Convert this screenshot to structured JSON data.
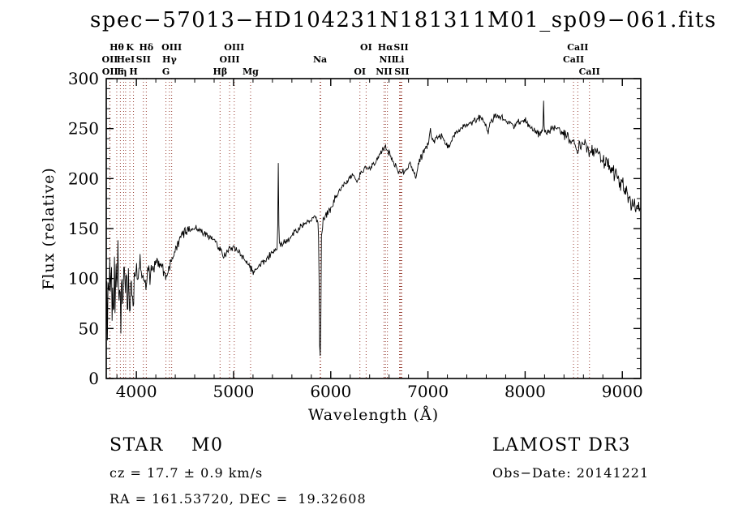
{
  "footer": {
    "classification": "STAR    M0",
    "survey": "LAMOST DR3",
    "cz": "cz = 17.7 ± 0.9 km/s",
    "obs_date": "Obs−Date: 20141221",
    "radec": "RA = 161.53720, DEC =  19.32608"
  },
  "colors": {
    "background": "#ffffff",
    "spectrum_line": "#000000",
    "axis": "#000000",
    "marker_line": "#963a2f",
    "text": "#000000"
  },
  "chart_data": {
    "type": "line",
    "title": "spec−57013−HD104231N181311M01_sp09−061.fits",
    "xlabel": "Wavelength (Å)",
    "ylabel": "Flux (relative)",
    "xlim": [
      3690,
      9190
    ],
    "ylim": [
      0,
      300
    ],
    "xticks": [
      4000,
      5000,
      6000,
      7000,
      8000,
      9000
    ],
    "x_minor_step": 200,
    "yticks": [
      0,
      50,
      100,
      150,
      200,
      250,
      300
    ],
    "y_minor_step": 10,
    "grid": false,
    "legend": "none",
    "series_name": "spectrum",
    "spectral_lines": [
      {
        "label": "Hθ",
        "wavelength": 3798,
        "row": 0
      },
      {
        "label": "K",
        "wavelength": 3933,
        "row": 0
      },
      {
        "label": "Hδ",
        "wavelength": 4102,
        "row": 0
      },
      {
        "label": "OIII",
        "wavelength": 4363,
        "row": 0
      },
      {
        "label": "OIII",
        "wavelength": 5007,
        "row": 0
      },
      {
        "label": "OI",
        "wavelength": 6364,
        "row": 0
      },
      {
        "label": "Hα",
        "wavelength": 6563,
        "row": 0
      },
      {
        "label": "SII",
        "wavelength": 6724,
        "row": 0
      },
      {
        "label": "CaII",
        "wavelength": 8542,
        "row": 0
      },
      {
        "label": "OII",
        "wavelength": 3727,
        "row": 1
      },
      {
        "label": "HeI",
        "wavelength": 3889,
        "row": 1
      },
      {
        "label": "SII",
        "wavelength": 4072,
        "row": 1
      },
      {
        "label": "Hγ",
        "wavelength": 4340,
        "row": 1
      },
      {
        "label": "OIII",
        "wavelength": 4959,
        "row": 1
      },
      {
        "label": "Na",
        "wavelength": 5890,
        "row": 1
      },
      {
        "label": "",
        "wavelength": 5896,
        "row": 1
      },
      {
        "label": "NII",
        "wavelength": 6583,
        "row": 1
      },
      {
        "label": "Li",
        "wavelength": 6707,
        "row": 1
      },
      {
        "label": "CaII",
        "wavelength": 8498,
        "row": 1
      },
      {
        "label": "OII",
        "wavelength": 3729,
        "row": 2
      },
      {
        "label": "E",
        "wavelength": 3835,
        "row": 2
      },
      {
        "label": "η",
        "wavelength": 3869,
        "row": 2
      },
      {
        "label": "H",
        "wavelength": 3970,
        "row": 2
      },
      {
        "label": "G",
        "wavelength": 4304,
        "row": 2
      },
      {
        "label": "Hβ",
        "wavelength": 4861,
        "row": 2
      },
      {
        "label": "Mg",
        "wavelength": 5175,
        "row": 2
      },
      {
        "label": "OI",
        "wavelength": 6300,
        "row": 2
      },
      {
        "label": "NII",
        "wavelength": 6548,
        "row": 2
      },
      {
        "label": "SII",
        "wavelength": 6731,
        "row": 2
      },
      {
        "label": "",
        "wavelength": 6716,
        "row": 2
      },
      {
        "label": "CaII",
        "wavelength": 8662,
        "row": 2
      }
    ],
    "spectrum_anchors": [
      [
        3690,
        40
      ],
      [
        3696,
        92
      ],
      [
        3702,
        50
      ],
      [
        3710,
        120
      ],
      [
        3718,
        62
      ],
      [
        3726,
        130
      ],
      [
        3734,
        76
      ],
      [
        3742,
        124
      ],
      [
        3750,
        52
      ],
      [
        3758,
        104
      ],
      [
        3766,
        44
      ],
      [
        3774,
        116
      ],
      [
        3782,
        66
      ],
      [
        3790,
        126
      ],
      [
        3800,
        86
      ],
      [
        3810,
        130
      ],
      [
        3820,
        62
      ],
      [
        3830,
        106
      ],
      [
        3840,
        50
      ],
      [
        3850,
        116
      ],
      [
        3860,
        57
      ],
      [
        3872,
        122
      ],
      [
        3884,
        82
      ],
      [
        3896,
        112
      ],
      [
        3908,
        66
      ],
      [
        3920,
        106
      ],
      [
        3932,
        57
      ],
      [
        3944,
        96
      ],
      [
        3956,
        86
      ],
      [
        3968,
        72
      ],
      [
        3980,
        100
      ],
      [
        4000,
        112
      ],
      [
        4020,
        98
      ],
      [
        4040,
        112
      ],
      [
        4060,
        96
      ],
      [
        4080,
        106
      ],
      [
        4100,
        90
      ],
      [
        4120,
        108
      ],
      [
        4140,
        102
      ],
      [
        4160,
        112
      ],
      [
        4180,
        108
      ],
      [
        4200,
        118
      ],
      [
        4240,
        113
      ],
      [
        4280,
        108
      ],
      [
        4310,
        101
      ],
      [
        4340,
        112
      ],
      [
        4370,
        119
      ],
      [
        4400,
        128
      ],
      [
        4440,
        137
      ],
      [
        4480,
        144
      ],
      [
        4520,
        148
      ],
      [
        4560,
        151
      ],
      [
        4600,
        152
      ],
      [
        4640,
        149
      ],
      [
        4680,
        146
      ],
      [
        4720,
        144
      ],
      [
        4760,
        142
      ],
      [
        4800,
        139
      ],
      [
        4840,
        132
      ],
      [
        4870,
        127
      ],
      [
        4900,
        121
      ],
      [
        4930,
        125
      ],
      [
        4960,
        129
      ],
      [
        5000,
        132
      ],
      [
        5040,
        128
      ],
      [
        5080,
        123
      ],
      [
        5120,
        118
      ],
      [
        5160,
        112
      ],
      [
        5200,
        107
      ],
      [
        5240,
        110
      ],
      [
        5280,
        114
      ],
      [
        5320,
        118
      ],
      [
        5360,
        122
      ],
      [
        5400,
        126
      ],
      [
        5452,
        131
      ],
      [
        5460,
        215
      ],
      [
        5468,
        132
      ],
      [
        5500,
        135
      ],
      [
        5540,
        138
      ],
      [
        5580,
        141
      ],
      [
        5620,
        145
      ],
      [
        5660,
        149
      ],
      [
        5700,
        153
      ],
      [
        5740,
        156
      ],
      [
        5780,
        158
      ],
      [
        5820,
        160
      ],
      [
        5850,
        161
      ],
      [
        5872,
        154
      ],
      [
        5880,
        100
      ],
      [
        5888,
        10
      ],
      [
        5896,
        35
      ],
      [
        5904,
        140
      ],
      [
        5920,
        157
      ],
      [
        5950,
        163
      ],
      [
        6000,
        171
      ],
      [
        6040,
        179
      ],
      [
        6080,
        186
      ],
      [
        6120,
        192
      ],
      [
        6160,
        197
      ],
      [
        6200,
        201
      ],
      [
        6240,
        204
      ],
      [
        6268,
        196
      ],
      [
        6300,
        205
      ],
      [
        6340,
        208
      ],
      [
        6380,
        210
      ],
      [
        6420,
        212
      ],
      [
        6460,
        217
      ],
      [
        6500,
        223
      ],
      [
        6530,
        228
      ],
      [
        6556,
        231
      ],
      [
        6580,
        229
      ],
      [
        6610,
        224
      ],
      [
        6640,
        217
      ],
      [
        6670,
        211
      ],
      [
        6700,
        207
      ],
      [
        6730,
        206
      ],
      [
        6760,
        209
      ],
      [
        6790,
        211
      ],
      [
        6820,
        214
      ],
      [
        6858,
        206
      ],
      [
        6880,
        201
      ],
      [
        6900,
        216
      ],
      [
        6940,
        223
      ],
      [
        6980,
        231
      ],
      [
        7010,
        240
      ],
      [
        7022,
        251
      ],
      [
        7034,
        240
      ],
      [
        7070,
        239
      ],
      [
        7110,
        241
      ],
      [
        7150,
        242
      ],
      [
        7186,
        234
      ],
      [
        7214,
        231
      ],
      [
        7250,
        239
      ],
      [
        7290,
        245
      ],
      [
        7330,
        249
      ],
      [
        7370,
        252
      ],
      [
        7410,
        255
      ],
      [
        7450,
        257
      ],
      [
        7490,
        259
      ],
      [
        7530,
        261
      ],
      [
        7570,
        259
      ],
      [
        7600,
        250
      ],
      [
        7618,
        245
      ],
      [
        7640,
        255
      ],
      [
        7680,
        261
      ],
      [
        7720,
        262
      ],
      [
        7760,
        261
      ],
      [
        7800,
        259
      ],
      [
        7840,
        256
      ],
      [
        7880,
        253
      ],
      [
        7920,
        255
      ],
      [
        7960,
        257
      ],
      [
        8000,
        258
      ],
      [
        8040,
        253
      ],
      [
        8080,
        249
      ],
      [
        8120,
        246
      ],
      [
        8160,
        245
      ],
      [
        8182,
        246
      ],
      [
        8190,
        279
      ],
      [
        8198,
        247
      ],
      [
        8240,
        246
      ],
      [
        8280,
        250
      ],
      [
        8320,
        252
      ],
      [
        8360,
        249
      ],
      [
        8400,
        245
      ],
      [
        8440,
        241
      ],
      [
        8490,
        233
      ],
      [
        8510,
        237
      ],
      [
        8536,
        227
      ],
      [
        8560,
        234
      ],
      [
        8600,
        237
      ],
      [
        8630,
        233
      ],
      [
        8656,
        221
      ],
      [
        8680,
        229
      ],
      [
        8720,
        228
      ],
      [
        8760,
        224
      ],
      [
        8800,
        218
      ],
      [
        8840,
        213
      ],
      [
        8880,
        209
      ],
      [
        8920,
        205
      ],
      [
        8960,
        199
      ],
      [
        9000,
        194
      ],
      [
        9040,
        187
      ],
      [
        9080,
        179
      ],
      [
        9120,
        171
      ],
      [
        9160,
        173
      ],
      [
        9190,
        168
      ]
    ],
    "noise_profile": [
      {
        "to": 4150,
        "amp": 15
      },
      {
        "to": 4500,
        "amp": 7
      },
      {
        "to": 5400,
        "amp": 4.5
      },
      {
        "to": 5870,
        "amp": 4
      },
      {
        "to": 5910,
        "amp": 5
      },
      {
        "to": 6050,
        "amp": 5
      },
      {
        "to": 6900,
        "amp": 4
      },
      {
        "to": 7400,
        "amp": 4.5
      },
      {
        "to": 8300,
        "amp": 4.5
      },
      {
        "to": 8600,
        "amp": 7
      },
      {
        "to": 9190,
        "amp": 11
      }
    ],
    "sample_step": 6
  }
}
